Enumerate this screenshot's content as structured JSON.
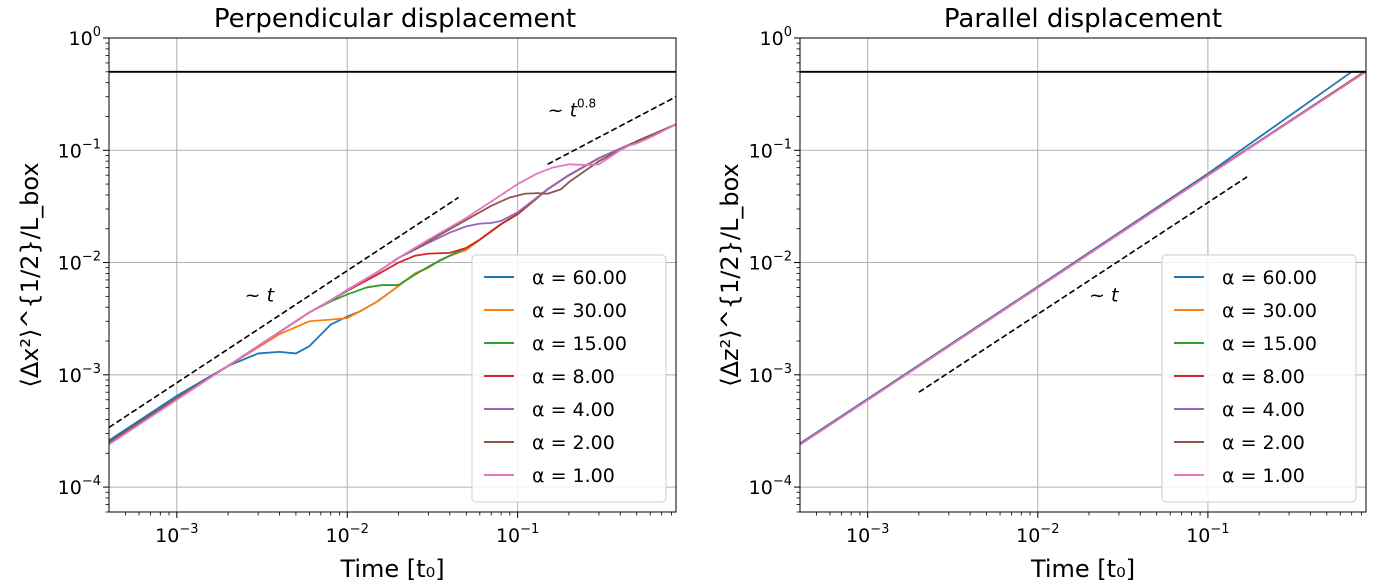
{
  "chart_data": [
    {
      "type": "line",
      "title": "Perpendicular displacement",
      "xlabel": "Time [t₀]",
      "ylabel": "⟨Δx²⟩^{1/2}/L_box",
      "xscale": "log",
      "yscale": "log",
      "xlim": [
        0.0004,
        0.85
      ],
      "ylim": [
        6e-05,
        1.0
      ],
      "grid": true,
      "legend_position": "lower-right",
      "x_tick_labels": [
        {
          "value": 0.001,
          "base": "10",
          "exp": "−3"
        },
        {
          "value": 0.01,
          "base": "10",
          "exp": "−2"
        },
        {
          "value": 0.1,
          "base": "10",
          "exp": "−1"
        }
      ],
      "y_tick_labels": [
        {
          "value": 0.0001,
          "base": "10",
          "exp": "−4"
        },
        {
          "value": 0.001,
          "base": "10",
          "exp": "−3"
        },
        {
          "value": 0.01,
          "base": "10",
          "exp": "−2"
        },
        {
          "value": 0.1,
          "base": "10",
          "exp": "−1"
        },
        {
          "value": 1.0,
          "base": "10",
          "exp": "0"
        }
      ],
      "hline": {
        "y": 0.5,
        "color": "#000000"
      },
      "reference_lines": [
        {
          "label_main": "~ t",
          "label_exp": "",
          "x": [
            0.0004,
            0.045
          ],
          "y": [
            0.00034,
            0.038
          ],
          "label_x": 0.0025,
          "label_y": 0.0045
        },
        {
          "label_main": "~ t",
          "label_exp": "0.8",
          "x": [
            0.15,
            0.85
          ],
          "y": [
            0.075,
            0.3
          ],
          "label_x": 0.15,
          "label_y": 0.2
        }
      ],
      "series": [
        {
          "name": "α = 60.00",
          "color": "#1f77b4",
          "points": [
            [
              0.0004,
              0.00026
            ],
            [
              0.001,
              0.00065
            ],
            [
              0.002,
              0.0012
            ],
            [
              0.003,
              0.00155
            ],
            [
              0.004,
              0.0016
            ],
            [
              0.005,
              0.00155
            ],
            [
              0.006,
              0.0018
            ],
            [
              0.008,
              0.0028
            ],
            [
              0.01,
              0.0033
            ],
            [
              0.012,
              0.0037
            ],
            [
              0.015,
              0.0045
            ],
            [
              0.018,
              0.0055
            ],
            [
              0.02,
              0.0062
            ],
            [
              0.025,
              0.008
            ],
            [
              0.03,
              0.009
            ],
            [
              0.035,
              0.0105
            ],
            [
              0.04,
              0.0115
            ],
            [
              0.05,
              0.013
            ],
            [
              0.06,
              0.016
            ],
            [
              0.08,
              0.022
            ],
            [
              0.1,
              0.027
            ],
            [
              0.15,
              0.045
            ],
            [
              0.2,
              0.06
            ],
            [
              0.3,
              0.085
            ],
            [
              0.5,
              0.12
            ],
            [
              0.85,
              0.17
            ]
          ]
        },
        {
          "name": "α = 30.00",
          "color": "#ff7f0e",
          "points": [
            [
              0.0004,
              0.00025
            ],
            [
              0.001,
              0.00062
            ],
            [
              0.002,
              0.0012
            ],
            [
              0.004,
              0.0023
            ],
            [
              0.006,
              0.003
            ],
            [
              0.008,
              0.0031
            ],
            [
              0.01,
              0.0032
            ],
            [
              0.012,
              0.0037
            ],
            [
              0.015,
              0.0045
            ],
            [
              0.018,
              0.0055
            ],
            [
              0.02,
              0.0062
            ],
            [
              0.025,
              0.008
            ],
            [
              0.03,
              0.009
            ],
            [
              0.035,
              0.0105
            ],
            [
              0.04,
              0.0115
            ],
            [
              0.05,
              0.013
            ],
            [
              0.06,
              0.016
            ],
            [
              0.08,
              0.022
            ],
            [
              0.1,
              0.027
            ],
            [
              0.15,
              0.045
            ],
            [
              0.2,
              0.06
            ],
            [
              0.3,
              0.085
            ],
            [
              0.5,
              0.12
            ],
            [
              0.85,
              0.17
            ]
          ]
        },
        {
          "name": "α = 15.00",
          "color": "#2ca02c",
          "points": [
            [
              0.0004,
              0.00025
            ],
            [
              0.001,
              0.00062
            ],
            [
              0.002,
              0.0012
            ],
            [
              0.004,
              0.0024
            ],
            [
              0.006,
              0.0036
            ],
            [
              0.008,
              0.0045
            ],
            [
              0.01,
              0.0052
            ],
            [
              0.013,
              0.006
            ],
            [
              0.016,
              0.0063
            ],
            [
              0.02,
              0.0063
            ],
            [
              0.025,
              0.0078
            ],
            [
              0.03,
              0.0092
            ],
            [
              0.04,
              0.0115
            ],
            [
              0.05,
              0.0135
            ],
            [
              0.06,
              0.016
            ],
            [
              0.08,
              0.022
            ],
            [
              0.1,
              0.027
            ],
            [
              0.15,
              0.045
            ],
            [
              0.2,
              0.06
            ],
            [
              0.3,
              0.085
            ],
            [
              0.5,
              0.12
            ],
            [
              0.85,
              0.17
            ]
          ]
        },
        {
          "name": "α = 8.00",
          "color": "#d62728",
          "points": [
            [
              0.0004,
              0.00025
            ],
            [
              0.001,
              0.00062
            ],
            [
              0.002,
              0.0012
            ],
            [
              0.004,
              0.0024
            ],
            [
              0.006,
              0.0036
            ],
            [
              0.008,
              0.0046
            ],
            [
              0.01,
              0.0056
            ],
            [
              0.015,
              0.0078
            ],
            [
              0.02,
              0.01
            ],
            [
              0.025,
              0.0115
            ],
            [
              0.03,
              0.012
            ],
            [
              0.04,
              0.0122
            ],
            [
              0.05,
              0.0135
            ],
            [
              0.06,
              0.016
            ],
            [
              0.08,
              0.022
            ],
            [
              0.1,
              0.027
            ],
            [
              0.15,
              0.045
            ],
            [
              0.2,
              0.06
            ],
            [
              0.3,
              0.085
            ],
            [
              0.5,
              0.12
            ],
            [
              0.85,
              0.17
            ]
          ]
        },
        {
          "name": "α = 4.00",
          "color": "#9467bd",
          "points": [
            [
              0.0004,
              0.00025
            ],
            [
              0.001,
              0.00062
            ],
            [
              0.002,
              0.0012
            ],
            [
              0.004,
              0.0024
            ],
            [
              0.006,
              0.0036
            ],
            [
              0.008,
              0.0046
            ],
            [
              0.01,
              0.0057
            ],
            [
              0.015,
              0.0082
            ],
            [
              0.02,
              0.011
            ],
            [
              0.03,
              0.015
            ],
            [
              0.04,
              0.0185
            ],
            [
              0.05,
              0.021
            ],
            [
              0.06,
              0.0222
            ],
            [
              0.07,
              0.0225
            ],
            [
              0.08,
              0.0235
            ],
            [
              0.1,
              0.028
            ],
            [
              0.15,
              0.045
            ],
            [
              0.2,
              0.06
            ],
            [
              0.3,
              0.085
            ],
            [
              0.5,
              0.12
            ],
            [
              0.85,
              0.17
            ]
          ]
        },
        {
          "name": "α = 2.00",
          "color": "#8c564b",
          "points": [
            [
              0.0004,
              0.00025
            ],
            [
              0.001,
              0.00062
            ],
            [
              0.002,
              0.0012
            ],
            [
              0.004,
              0.0024
            ],
            [
              0.006,
              0.0036
            ],
            [
              0.008,
              0.0046
            ],
            [
              0.01,
              0.0057
            ],
            [
              0.015,
              0.0082
            ],
            [
              0.02,
              0.011
            ],
            [
              0.03,
              0.0155
            ],
            [
              0.05,
              0.024
            ],
            [
              0.07,
              0.032
            ],
            [
              0.09,
              0.038
            ],
            [
              0.11,
              0.041
            ],
            [
              0.13,
              0.0415
            ],
            [
              0.15,
              0.041
            ],
            [
              0.18,
              0.045
            ],
            [
              0.2,
              0.052
            ],
            [
              0.3,
              0.08
            ],
            [
              0.5,
              0.12
            ],
            [
              0.85,
              0.17
            ]
          ]
        },
        {
          "name": "α = 1.00",
          "color": "#e377c2",
          "points": [
            [
              0.0004,
              0.00024
            ],
            [
              0.001,
              0.0006
            ],
            [
              0.002,
              0.0012
            ],
            [
              0.004,
              0.0024
            ],
            [
              0.006,
              0.0036
            ],
            [
              0.008,
              0.0046
            ],
            [
              0.01,
              0.0057
            ],
            [
              0.015,
              0.0082
            ],
            [
              0.02,
              0.011
            ],
            [
              0.03,
              0.016
            ],
            [
              0.05,
              0.025
            ],
            [
              0.08,
              0.04
            ],
            [
              0.1,
              0.05
            ],
            [
              0.13,
              0.062
            ],
            [
              0.16,
              0.07
            ],
            [
              0.2,
              0.075
            ],
            [
              0.25,
              0.074
            ],
            [
              0.3,
              0.075
            ],
            [
              0.4,
              0.1
            ],
            [
              0.45,
              0.11
            ],
            [
              0.5,
              0.115
            ],
            [
              0.6,
              0.13
            ],
            [
              0.85,
              0.17
            ]
          ]
        }
      ]
    },
    {
      "type": "line",
      "title": "Parallel displacement",
      "xlabel": "Time [t₀]",
      "ylabel": "⟨Δz²⟩^{1/2}/L_box",
      "xscale": "log",
      "yscale": "log",
      "xlim": [
        0.0004,
        0.85
      ],
      "ylim": [
        6e-05,
        1.0
      ],
      "grid": true,
      "legend_position": "lower-right",
      "x_tick_labels": [
        {
          "value": 0.001,
          "base": "10",
          "exp": "−3"
        },
        {
          "value": 0.01,
          "base": "10",
          "exp": "−2"
        },
        {
          "value": 0.1,
          "base": "10",
          "exp": "−1"
        }
      ],
      "y_tick_labels": [
        {
          "value": 0.0001,
          "base": "10",
          "exp": "−4"
        },
        {
          "value": 0.001,
          "base": "10",
          "exp": "−3"
        },
        {
          "value": 0.01,
          "base": "10",
          "exp": "−2"
        },
        {
          "value": 0.1,
          "base": "10",
          "exp": "−1"
        },
        {
          "value": 1.0,
          "base": "10",
          "exp": "0"
        }
      ],
      "hline": {
        "y": 0.5,
        "color": "#000000"
      },
      "reference_lines": [
        {
          "label_main": "~ t",
          "label_exp": "",
          "x": [
            0.002,
            0.17
          ],
          "y": [
            0.0007,
            0.058
          ],
          "label_x": 0.02,
          "label_y": 0.0045
        }
      ],
      "series": [
        {
          "name": "α = 60.00",
          "color": "#1f77b4",
          "points": [
            [
              0.0004,
              0.000245
            ],
            [
              0.001,
              0.00061
            ],
            [
              0.01,
              0.0061
            ],
            [
              0.1,
              0.062
            ],
            [
              0.7,
              0.5
            ],
            [
              0.85,
              0.5
            ]
          ]
        },
        {
          "name": "α = 30.00",
          "color": "#ff7f0e",
          "points": [
            [
              0.0004,
              0.00024
            ],
            [
              0.001,
              0.0006
            ],
            [
              0.01,
              0.006
            ],
            [
              0.1,
              0.06
            ],
            [
              0.8,
              0.48
            ],
            [
              0.85,
              0.5
            ]
          ]
        },
        {
          "name": "α = 15.00",
          "color": "#2ca02c",
          "points": [
            [
              0.0004,
              0.00024
            ],
            [
              0.001,
              0.0006
            ],
            [
              0.01,
              0.006
            ],
            [
              0.1,
              0.06
            ],
            [
              0.8,
              0.48
            ],
            [
              0.85,
              0.5
            ]
          ]
        },
        {
          "name": "α = 8.00",
          "color": "#d62728",
          "points": [
            [
              0.0004,
              0.00024
            ],
            [
              0.001,
              0.0006
            ],
            [
              0.01,
              0.006
            ],
            [
              0.1,
              0.06
            ],
            [
              0.8,
              0.48
            ],
            [
              0.85,
              0.5
            ]
          ]
        },
        {
          "name": "α = 4.00",
          "color": "#9467bd",
          "points": [
            [
              0.0004,
              0.00024
            ],
            [
              0.001,
              0.0006
            ],
            [
              0.01,
              0.006
            ],
            [
              0.1,
              0.06
            ],
            [
              0.8,
              0.48
            ],
            [
              0.85,
              0.5
            ]
          ]
        },
        {
          "name": "α = 2.00",
          "color": "#8c564b",
          "points": [
            [
              0.0004,
              0.00024
            ],
            [
              0.001,
              0.0006
            ],
            [
              0.01,
              0.006
            ],
            [
              0.1,
              0.06
            ],
            [
              0.8,
              0.48
            ],
            [
              0.85,
              0.5
            ]
          ]
        },
        {
          "name": "α = 1.00",
          "color": "#e377c2",
          "points": [
            [
              0.0004,
              0.000238
            ],
            [
              0.001,
              0.000595
            ],
            [
              0.01,
              0.00595
            ],
            [
              0.1,
              0.0595
            ],
            [
              0.85,
              0.5
            ]
          ]
        }
      ]
    }
  ]
}
